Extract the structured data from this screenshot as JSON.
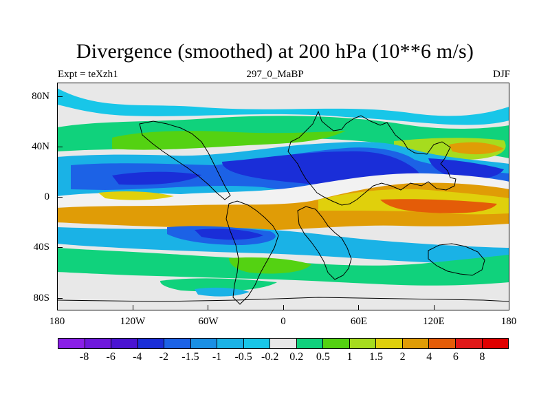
{
  "header": {
    "title": "Divergence (smoothed) at 200 hPa (10**6 m/s)",
    "left": "Expt = teXzh1",
    "center": "297_0_MaBP",
    "right": "DJF"
  },
  "map": {
    "lat_labels": [
      "80N",
      "40N",
      "0",
      "40S",
      "80S"
    ],
    "lon_labels": [
      "180",
      "120W",
      "60W",
      "0",
      "60E",
      "120E",
      "180"
    ],
    "background_color": "#e8e8e8"
  },
  "legend": {
    "labels": [
      "-8",
      "-6",
      "-4",
      "-2",
      "-1.5",
      "-1",
      "-0.5",
      "-0.2",
      "0.2",
      "0.5",
      "1",
      "1.5",
      "2",
      "4",
      "6",
      "8"
    ],
    "colors": [
      "#8a1fe8",
      "#6e18dc",
      "#4a14d2",
      "#1a2ed8",
      "#1c62e6",
      "#1a8fe4",
      "#1ab2e6",
      "#18c6e8",
      "#e8e8e8",
      "#10d27c",
      "#54d212",
      "#a6dc1e",
      "#e0d00c",
      "#e09c06",
      "#e45c08",
      "#e11818",
      "#e00000"
    ]
  }
}
